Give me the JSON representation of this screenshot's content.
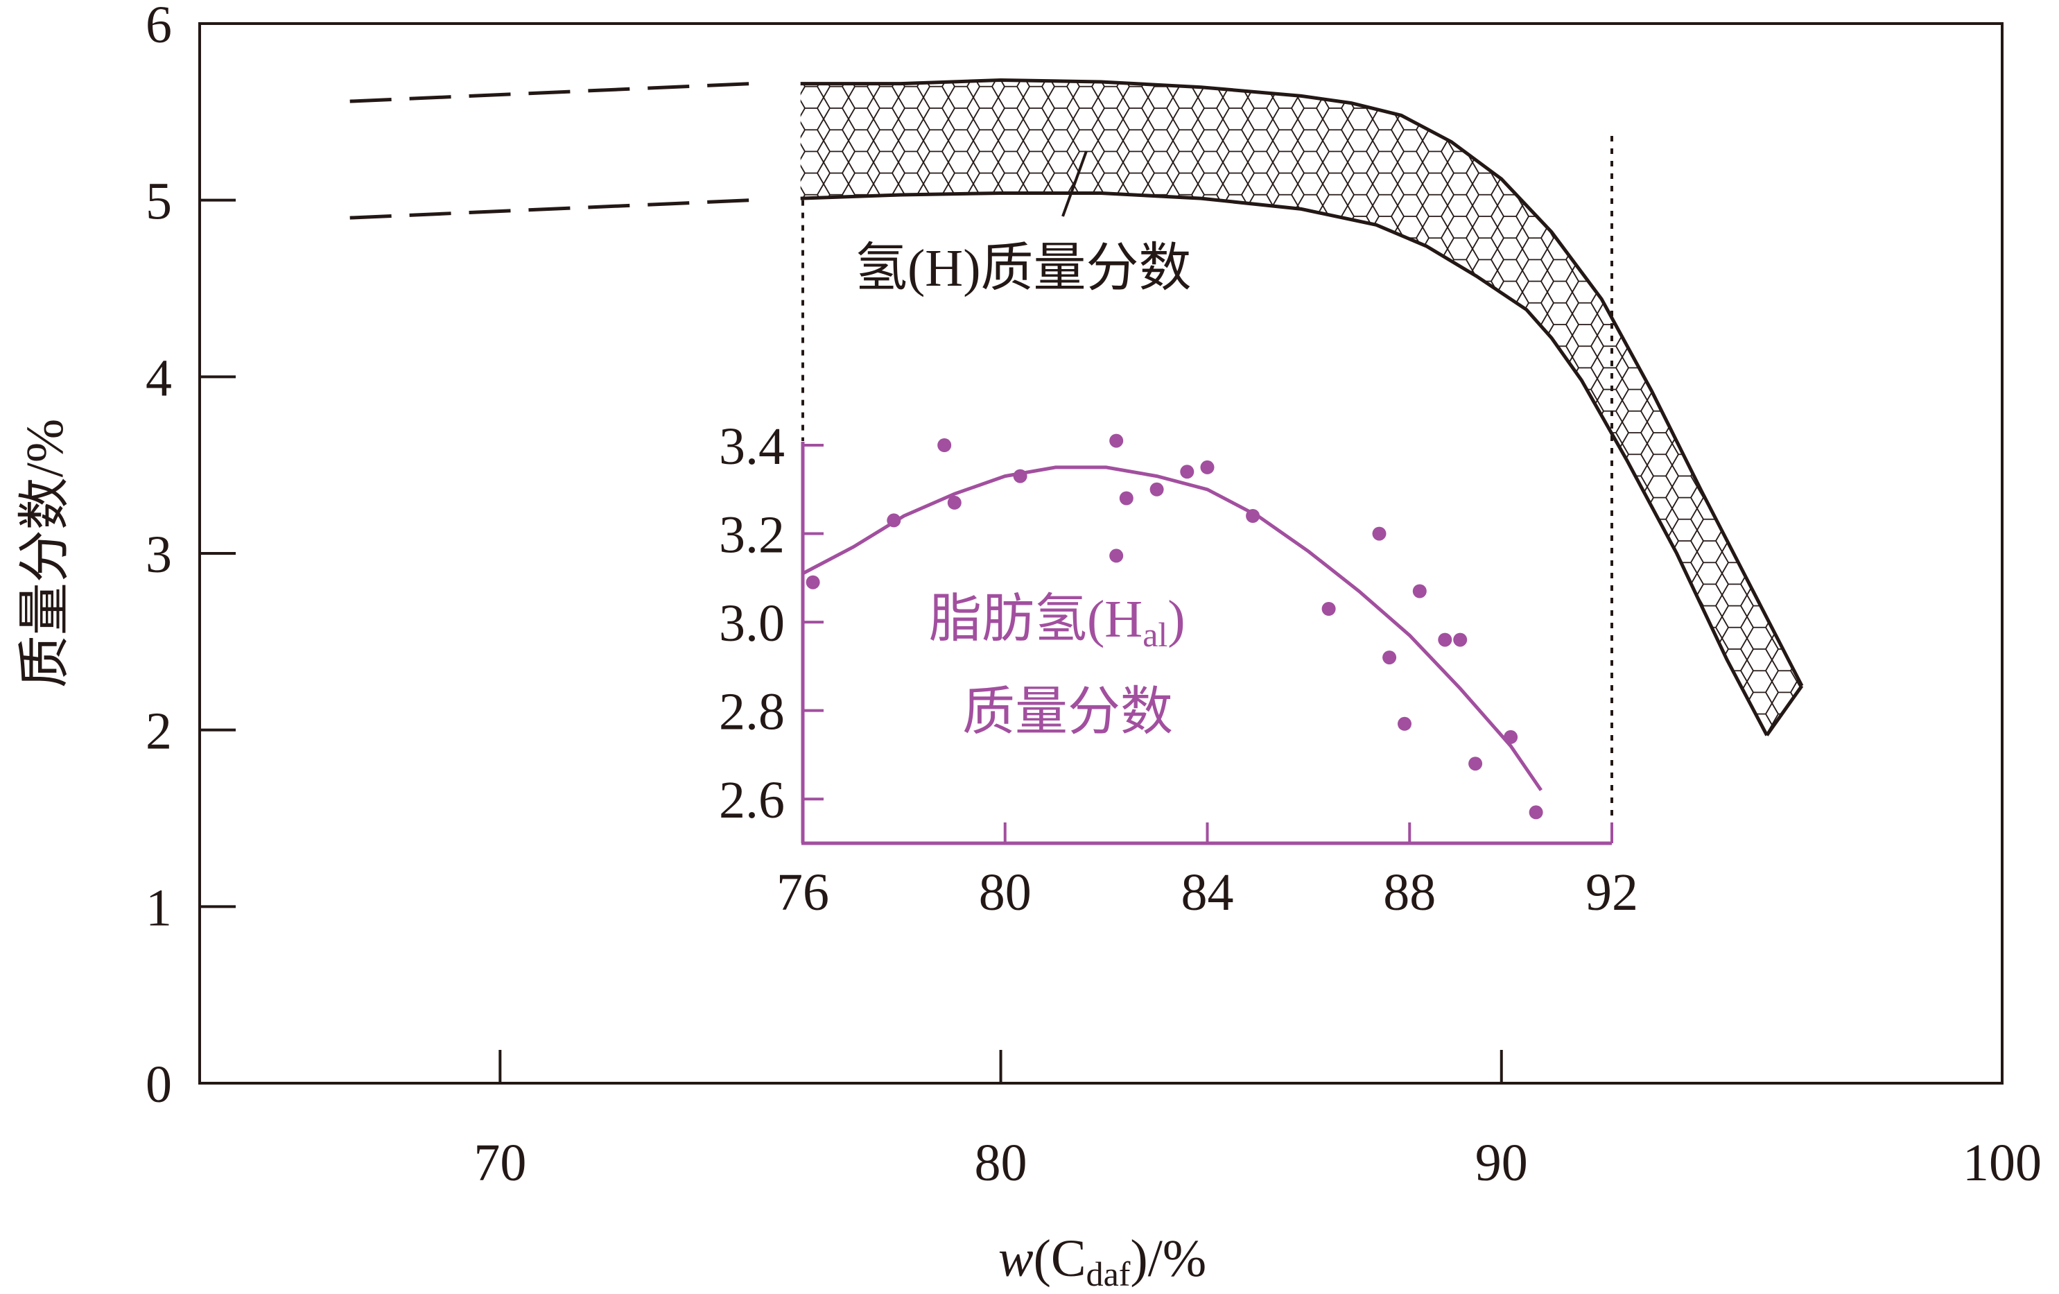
{
  "chart_data": [
    {
      "type": "area",
      "xlabel": {
        "pre": "w",
        "open": "(C",
        "sub": "daf",
        "close": ")/%"
      },
      "ylabel": "质量分数/%",
      "xlim": [
        64,
        100
      ],
      "ylim": [
        0,
        6
      ],
      "x_ticks": [
        "70",
        "80",
        "90",
        "100"
      ],
      "y_ticks": [
        "0",
        "1",
        "2",
        "3",
        "4",
        "5",
        "6"
      ],
      "grid": false,
      "series": [
        {
          "name": "氢(H)质量分数",
          "style": "hexagon-hatched band",
          "upper": [
            [
              76,
              5.66
            ],
            [
              78,
              5.66
            ],
            [
              80,
              5.68
            ],
            [
              82,
              5.67
            ],
            [
              84,
              5.64
            ],
            [
              86,
              5.59
            ],
            [
              87,
              5.55
            ],
            [
              88,
              5.48
            ],
            [
              89,
              5.33
            ],
            [
              90,
              5.12
            ],
            [
              91,
              4.82
            ],
            [
              92,
              4.44
            ],
            [
              93,
              3.92
            ],
            [
              94,
              3.35
            ],
            [
              95,
              2.8
            ],
            [
              96,
              2.25
            ]
          ],
          "lower": [
            [
              76,
              5.01
            ],
            [
              78,
              5.03
            ],
            [
              80,
              5.04
            ],
            [
              82,
              5.04
            ],
            [
              84,
              5.01
            ],
            [
              86,
              4.95
            ],
            [
              87.5,
              4.86
            ],
            [
              88.5,
              4.74
            ],
            [
              89.5,
              4.57
            ],
            [
              90.5,
              4.38
            ],
            [
              91,
              4.22
            ],
            [
              91.6,
              3.98
            ],
            [
              92.5,
              3.53
            ],
            [
              93.5,
              3.0
            ],
            [
              94.5,
              2.4
            ],
            [
              95.3,
              1.97
            ]
          ],
          "extrapolation_upper": [
            [
              67,
              5.56
            ],
            [
              75,
              5.66
            ]
          ],
          "extrapolation_lower": [
            [
              67,
              4.9
            ],
            [
              75,
              5.0
            ]
          ]
        }
      ],
      "reference_lines_x": [
        76,
        92
      ]
    },
    {
      "type": "scatter",
      "xlim": [
        76,
        92
      ],
      "ylim": [
        2.5,
        3.4
      ],
      "x_ticks": [
        "76",
        "80",
        "84",
        "88",
        "92"
      ],
      "y_ticks": [
        "2.6",
        "2.8",
        "3.0",
        "3.2",
        "3.4"
      ],
      "color": "#a24f9f",
      "annotation": {
        "line1_pre": "脂肪氢(H",
        "line1_sub": "al",
        "line1_post": ")",
        "line2": "质量分数"
      },
      "points": [
        [
          76.2,
          3.09
        ],
        [
          77.8,
          3.23
        ],
        [
          78.8,
          3.4
        ],
        [
          79.0,
          3.27
        ],
        [
          80.3,
          3.33
        ],
        [
          82.2,
          3.41
        ],
        [
          82.2,
          3.15
        ],
        [
          82.4,
          3.28
        ],
        [
          83.0,
          3.3
        ],
        [
          83.6,
          3.34
        ],
        [
          84.0,
          3.35
        ],
        [
          84.9,
          3.24
        ],
        [
          86.4,
          3.03
        ],
        [
          87.4,
          3.2
        ],
        [
          87.6,
          2.92
        ],
        [
          87.9,
          2.77
        ],
        [
          88.2,
          3.07
        ],
        [
          88.7,
          2.96
        ],
        [
          89.0,
          2.96
        ],
        [
          89.3,
          2.68
        ],
        [
          90.0,
          2.74
        ],
        [
          90.5,
          2.57
        ]
      ],
      "fit_curve": [
        [
          76,
          3.11
        ],
        [
          77,
          3.17
        ],
        [
          78,
          3.24
        ],
        [
          79,
          3.29
        ],
        [
          80,
          3.33
        ],
        [
          81,
          3.35
        ],
        [
          82,
          3.35
        ],
        [
          83,
          3.33
        ],
        [
          84,
          3.3
        ],
        [
          85,
          3.24
        ],
        [
          86,
          3.16
        ],
        [
          87,
          3.07
        ],
        [
          88,
          2.97
        ],
        [
          89,
          2.85
        ],
        [
          90,
          2.72
        ],
        [
          90.6,
          2.62
        ]
      ]
    }
  ]
}
